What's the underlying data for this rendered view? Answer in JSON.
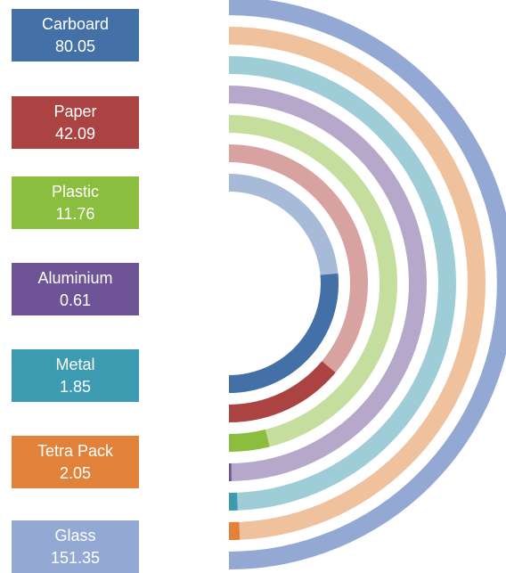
{
  "chart_data": {
    "type": "radial-bar",
    "title": "",
    "max_value": 151.35,
    "series": [
      {
        "name": "Carboard",
        "value_label": "80.05",
        "value": 80.05,
        "color": "#4470a8",
        "track_color": "#a7bbd9"
      },
      {
        "name": "Paper",
        "value_label": "42.09",
        "value": 42.09,
        "color": "#aa4341",
        "track_color": "#d8a2a1"
      },
      {
        "name": "Plastic",
        "value_label": "11.76",
        "value": 11.76,
        "color": "#8bbd3f",
        "track_color": "#c5de9e"
      },
      {
        "name": "Aluminium",
        "value_label": "0.61",
        "value": 0.61,
        "color": "#6e5496",
        "track_color": "#b6a8ca"
      },
      {
        "name": "Metal",
        "value_label": "1.85",
        "value": 1.85,
        "color": "#3d9bb1",
        "track_color": "#9ecdd8"
      },
      {
        "name": "Tetra Pack",
        "value_label": "2.05",
        "value": 2.05,
        "color": "#e2823a",
        "track_color": "#f0c19d"
      },
      {
        "name": "Glass",
        "value_label": "151.35",
        "value": 151.35,
        "color": "#93a9d4",
        "track_color": "#c9d4e9"
      }
    ]
  }
}
